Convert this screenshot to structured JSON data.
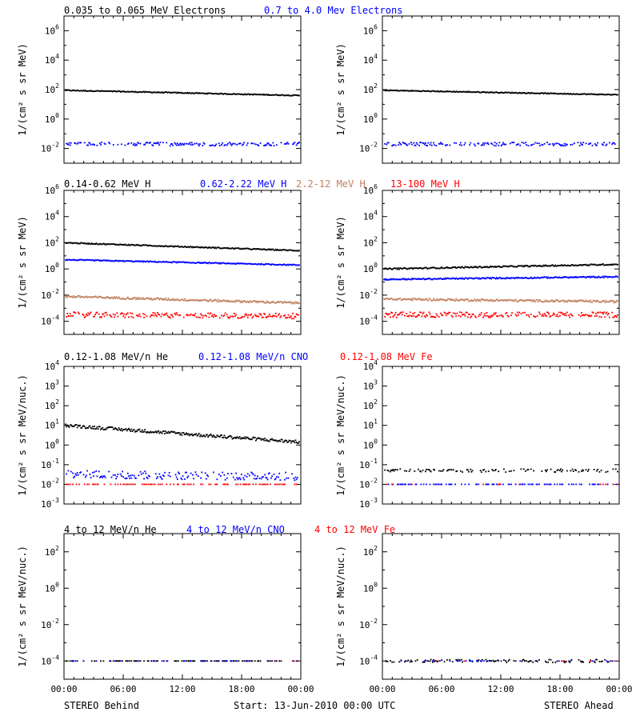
{
  "footer": {
    "left": "STEREO Behind",
    "center": "Start: 13-Jun-2010 00:00 UTC",
    "right": "STEREO Ahead"
  },
  "chart_data": [
    {
      "type": "scatter",
      "id": "behind-electrons",
      "ylog": true,
      "ylim_exp": [
        -3,
        7
      ],
      "ylabel": "1/(cm² s sr MeV)",
      "yticks": [
        {
          "e": -2,
          "t": "10-2"
        },
        {
          "e": 0,
          "t": "100"
        },
        {
          "e": 2,
          "t": "102"
        },
        {
          "e": 4,
          "t": "104"
        },
        {
          "e": 6,
          "t": "106"
        }
      ],
      "xticks": [],
      "series": [
        {
          "name": "0.035 to 0.065 MeV Electrons",
          "color": "#000000",
          "start": 1.95,
          "end": 1.6,
          "noise": 0.03,
          "density": 1
        },
        {
          "name": "0.7 to 4.0 Mev Electrons",
          "color": "#0000ff",
          "start": -1.7,
          "end": -1.7,
          "noise": 0.12,
          "density": 0.6
        }
      ]
    },
    {
      "type": "scatter",
      "id": "ahead-electrons",
      "ylog": true,
      "ylim_exp": [
        -3,
        7
      ],
      "ylabel": "1/(cm² s sr MeV)",
      "yticks": [
        {
          "e": -2,
          "t": "10-2"
        },
        {
          "e": 0,
          "t": "100"
        },
        {
          "e": 2,
          "t": "102"
        },
        {
          "e": 4,
          "t": "104"
        },
        {
          "e": 6,
          "t": "106"
        }
      ],
      "xticks": [],
      "series": [
        {
          "color": "#000000",
          "start": 1.95,
          "end": 1.65,
          "noise": 0.03,
          "density": 1
        },
        {
          "color": "#0000ff",
          "start": -1.7,
          "end": -1.7,
          "noise": 0.12,
          "density": 0.6
        }
      ]
    },
    {
      "type": "scatter",
      "id": "behind-protons",
      "ylog": true,
      "ylim_exp": [
        -5,
        6
      ],
      "ylabel": "1/(cm² s sr MeV)",
      "yticks": [
        {
          "e": -4,
          "t": "10-4"
        },
        {
          "e": -2,
          "t": "10-2"
        },
        {
          "e": 0,
          "t": "100"
        },
        {
          "e": 2,
          "t": "102"
        },
        {
          "e": 4,
          "t": "104"
        },
        {
          "e": 6,
          "t": "106"
        }
      ],
      "xticks": [],
      "series": [
        {
          "name": "0.14-0.62 MeV H",
          "color": "#000000",
          "start": 2.0,
          "end": 1.4,
          "noise": 0.04,
          "density": 1
        },
        {
          "name": "0.62-2.22 MeV H",
          "color": "#0000ff",
          "start": 0.7,
          "end": 0.3,
          "noise": 0.04,
          "density": 1
        },
        {
          "name": "2.2-12 MeV H",
          "color": "#c08060",
          "start": -2.1,
          "end": -2.6,
          "noise": 0.08,
          "density": 1
        },
        {
          "name": "13-100 MeV H",
          "color": "#ff0000",
          "start": -3.5,
          "end": -3.6,
          "noise": 0.2,
          "density": 0.8
        }
      ]
    },
    {
      "type": "scatter",
      "id": "ahead-protons",
      "ylog": true,
      "ylim_exp": [
        -5,
        6
      ],
      "ylabel": "1/(cm² s sr MeV)",
      "yticks": [
        {
          "e": -4,
          "t": "10-4"
        },
        {
          "e": -2,
          "t": "10-2"
        },
        {
          "e": 0,
          "t": "100"
        },
        {
          "e": 2,
          "t": "102"
        },
        {
          "e": 4,
          "t": "104"
        },
        {
          "e": 6,
          "t": "106"
        }
      ],
      "xticks": [],
      "series": [
        {
          "color": "#000000",
          "start": 0.0,
          "end": 0.35,
          "noise": 0.05,
          "density": 1
        },
        {
          "color": "#0000ff",
          "start": -0.8,
          "end": -0.6,
          "noise": 0.05,
          "density": 1
        },
        {
          "color": "#c08060",
          "start": -2.3,
          "end": -2.5,
          "noise": 0.08,
          "density": 1
        },
        {
          "color": "#ff0000",
          "start": -3.5,
          "end": -3.5,
          "noise": 0.2,
          "density": 0.8
        }
      ]
    },
    {
      "type": "scatter",
      "id": "behind-heavy-low",
      "ylog": true,
      "ylim_exp": [
        -3,
        4
      ],
      "ylabel": "1/(cm² s sr MeV/nuc.)",
      "yticks": [
        {
          "e": -3,
          "t": "10-3"
        },
        {
          "e": -2,
          "t": "10-2"
        },
        {
          "e": -1,
          "t": "10-1"
        },
        {
          "e": 0,
          "t": "100"
        },
        {
          "e": 1,
          "t": "101"
        },
        {
          "e": 2,
          "t": "102"
        },
        {
          "e": 3,
          "t": "103"
        },
        {
          "e": 4,
          "t": "104"
        }
      ],
      "xticks": [],
      "series": [
        {
          "name": "0.12-1.08 MeV/n He",
          "color": "#000000",
          "start": 1.0,
          "end": 0.15,
          "noise": 0.08,
          "density": 1
        },
        {
          "name": "0.12-1.08 MeV/n CNO",
          "color": "#0000ff",
          "start": -1.5,
          "end": -1.6,
          "noise": 0.2,
          "density": 0.6
        },
        {
          "name": "0.12-1.08 MeV Fe",
          "color": "#ff0000",
          "start": -2.0,
          "end": -2.0,
          "noise": 0.0,
          "density": 0.35
        }
      ]
    },
    {
      "type": "scatter",
      "id": "ahead-heavy-low",
      "ylog": true,
      "ylim_exp": [
        -3,
        4
      ],
      "ylabel": "1/(cm² s sr MeV/nuc.)",
      "yticks": [
        {
          "e": -3,
          "t": "10-3"
        },
        {
          "e": -2,
          "t": "10-2"
        },
        {
          "e": -1,
          "t": "10-1"
        },
        {
          "e": 0,
          "t": "100"
        },
        {
          "e": 1,
          "t": "101"
        },
        {
          "e": 2,
          "t": "102"
        },
        {
          "e": 3,
          "t": "103"
        },
        {
          "e": 4,
          "t": "104"
        }
      ],
      "xticks": [],
      "series": [
        {
          "color": "#000000",
          "start": -1.3,
          "end": -1.3,
          "noise": 0.08,
          "density": 0.45
        },
        {
          "color": "#0000ff",
          "start": -2.0,
          "end": -2.0,
          "noise": 0.0,
          "density": 0.35
        },
        {
          "color": "#ff0000",
          "start": -2.0,
          "end": -2.0,
          "noise": 0.0,
          "density": 0.05
        }
      ]
    },
    {
      "type": "scatter",
      "id": "behind-heavy-high",
      "ylog": true,
      "ylim_exp": [
        -5,
        3
      ],
      "ylabel": "1/(cm² s sr MeV/nuc.)",
      "yticks": [
        {
          "e": -4,
          "t": "10-4"
        },
        {
          "e": -2,
          "t": "10-2"
        },
        {
          "e": 0,
          "t": "100"
        },
        {
          "e": 2,
          "t": "102"
        }
      ],
      "xticks": [
        "00:00",
        "06:00",
        "12:00",
        "18:00",
        "00:00"
      ],
      "series": [
        {
          "name": "4 to 12 MeV/n He",
          "color": "#000000",
          "start": -4.0,
          "end": -4.0,
          "noise": 0.0,
          "density": 0.35
        },
        {
          "name": "4 to 12 MeV/n CNO",
          "color": "#0000ff",
          "start": -4.0,
          "end": -4.0,
          "noise": 0.0,
          "density": 0.15
        },
        {
          "name": "4 to 12 MeV Fe",
          "color": "#ff0000",
          "start": -4.0,
          "end": -4.0,
          "noise": 0.0,
          "density": 0.01
        }
      ]
    },
    {
      "type": "scatter",
      "id": "ahead-heavy-high",
      "ylog": true,
      "ylim_exp": [
        -5,
        3
      ],
      "ylabel": "1/(cm² s sr MeV/nuc.)",
      "yticks": [
        {
          "e": -4,
          "t": "10-4"
        },
        {
          "e": -2,
          "t": "10-2"
        },
        {
          "e": 0,
          "t": "100"
        },
        {
          "e": 2,
          "t": "102"
        }
      ],
      "xticks": [
        "00:00",
        "06:00",
        "12:00",
        "18:00",
        "00:00"
      ],
      "series": [
        {
          "color": "#000000",
          "start": -4.0,
          "end": -4.0,
          "noise": 0.08,
          "density": 0.45
        },
        {
          "color": "#0000ff",
          "start": -4.0,
          "end": -4.0,
          "noise": 0.0,
          "density": 0.12
        },
        {
          "color": "#ff0000",
          "start": -4.0,
          "end": -4.0,
          "noise": 0.0,
          "density": 0.02
        }
      ]
    }
  ]
}
